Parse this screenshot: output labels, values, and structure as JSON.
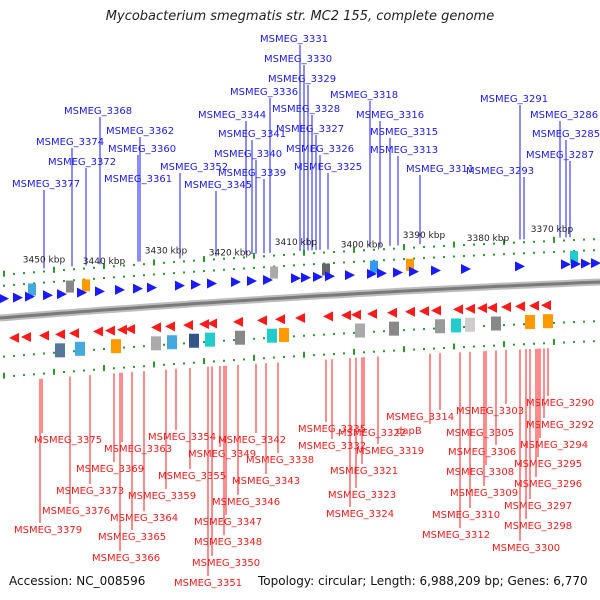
{
  "title": "Mycobacterium smegmatis str. MC2 155, complete genome",
  "footer": {
    "accession": "Accession: NC_008596",
    "summary": "Topology: circular; Length: 6,988,209 bp; Genes: 6,770"
  },
  "colors": {
    "forward_gene": "#1a1aff",
    "reverse_gene": "#ff1a1a",
    "tick": "#2a9a2a",
    "axis": "#7a7a7a"
  },
  "scale_labels": [
    "3450 kbp",
    "3440 kbp",
    "3430 kbp",
    "3420 kbp",
    "3410 kbp",
    "3400 kbp",
    "3390 kbp",
    "3380 kbp",
    "3370 kbp"
  ],
  "top_labels": [
    "MSMEG_3331",
    "MSMEG_3330",
    "MSMEG_3329",
    "MSMEG_3336",
    "MSMEG_3328",
    "MSMEG_3318",
    "MSMEG_3291",
    "MSMEG_3368",
    "MSMEG_3344",
    "MSMEG_3327",
    "MSMEG_3316",
    "MSMEG_3286",
    "MSMEG_3374",
    "MSMEG_3362",
    "MSMEG_3341",
    "MSMEG_3315",
    "MSMEG_3285",
    "MSMEG_3360",
    "MSMEG_3340",
    "MSMEG_3326",
    "MSMEG_3313",
    "MSMEG_3287",
    "MSMEG_3372",
    "MSMEG_3352",
    "MSMEG_3339",
    "MSMEG_3325",
    "MSMEG_3311",
    "MSMEG_3293",
    "MSMEG_3377",
    "MSMEG_3361",
    "MSMEG_3345"
  ],
  "bottom_labels": [
    "MSMEG_3290",
    "MSMEG_3303",
    "MSMEG_3292",
    "MSMEG_3314",
    "MSMEG_3335",
    "dapB",
    "MSMEG_3322",
    "MSMEG_3305",
    "MSMEG_3354",
    "MSMEG_3342",
    "MSMEG_3332",
    "MSMEG_3294",
    "MSMEG_3375",
    "MSMEG_3363",
    "MSMEG_3349",
    "MSMEG_3319",
    "MSMEG_3306",
    "MSMEG_3338",
    "MSMEG_3295",
    "MSMEG_3369",
    "MSMEG_3355",
    "MSMEG_3321",
    "MSMEG_3308",
    "MSMEG_3343",
    "MSMEG_3296",
    "MSMEG_3373",
    "MSMEG_3359",
    "MSMEG_3323",
    "MSMEG_3309",
    "MSMEG_3346",
    "MSMEG_3297",
    "MSMEG_3376",
    "MSMEG_3364",
    "MSMEG_3324",
    "MSMEG_3310",
    "MSMEG_3347",
    "MSMEG_3298",
    "MSMEG_3379",
    "MSMEG_3365",
    "MSMEG_3348",
    "MSMEG_3312",
    "MSMEG_3300",
    "MSMEG_3366",
    "MSMEG_3350",
    "MSMEG_3351"
  ]
}
